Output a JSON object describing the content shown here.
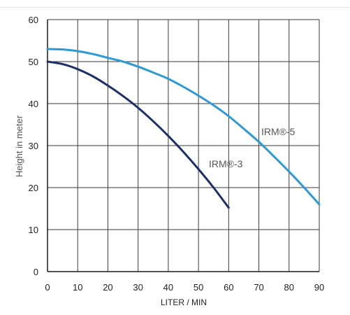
{
  "chart_data": {
    "type": "line",
    "title": "",
    "xlabel": "LITER / MIN",
    "ylabel": "Height in meter",
    "xlim": [
      0,
      90
    ],
    "ylim": [
      0,
      60
    ],
    "x_ticks": [
      "0",
      "10",
      "20",
      "30",
      "40",
      "50",
      "60",
      "70",
      "80",
      "90"
    ],
    "y_ticks": [
      "0",
      "10",
      "20",
      "30",
      "40",
      "50",
      "60"
    ],
    "grid": true,
    "legend": "none",
    "series": [
      {
        "name": "IRM®-5",
        "color": "#2b9ad6",
        "x": [
          0,
          5,
          10,
          15,
          20,
          25,
          30,
          35,
          40,
          45,
          50,
          55,
          60,
          65,
          70,
          75,
          80,
          85,
          90
        ],
        "y": [
          53,
          52.9,
          52.5,
          51.8,
          50.9,
          50.0,
          48.8,
          47.4,
          45.9,
          44.0,
          41.9,
          39.6,
          37.0,
          34.0,
          30.9,
          27.4,
          23.8,
          20.0,
          16.0
        ]
      },
      {
        "name": "IRM®-3",
        "color": "#1d2f6b",
        "x": [
          0,
          5,
          10,
          15,
          20,
          25,
          30,
          35,
          40,
          45,
          50,
          55,
          60
        ],
        "y": [
          50,
          49.4,
          48.2,
          46.5,
          44.3,
          41.8,
          39.0,
          35.8,
          32.3,
          28.5,
          24.4,
          20.0,
          15.2
        ]
      }
    ]
  }
}
